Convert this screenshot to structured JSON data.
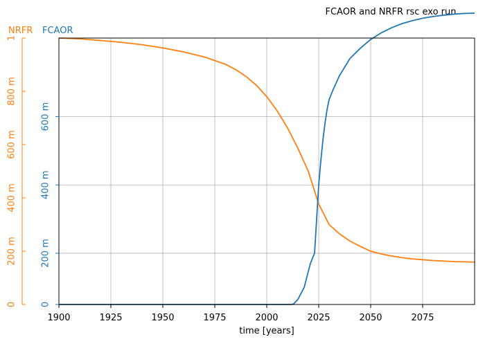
{
  "chart_data": {
    "type": "line",
    "title": "FCAOR and NRFR rsc exo run",
    "xlabel": "time [years]",
    "xlim": [
      1900,
      2100
    ],
    "x_ticks": [
      1900,
      1925,
      1950,
      1975,
      2000,
      2025,
      2050,
      2075
    ],
    "grid": true,
    "axes": {
      "nrfr": {
        "name": "NRFR",
        "color": "#ff7f0e",
        "ylim": [
          0,
          1
        ],
        "ticks": [
          {
            "v": 0,
            "label": "0"
          },
          {
            "v": 0.2,
            "label": "200 m"
          },
          {
            "v": 0.4,
            "label": "400 m"
          },
          {
            "v": 0.6,
            "label": "600 m"
          },
          {
            "v": 0.8,
            "label": "800 m"
          },
          {
            "v": 1.0,
            "label": "1"
          }
        ]
      },
      "fcaor": {
        "name": "FCAOR",
        "color": "#1f77b4",
        "ylim": [
          0.05,
          0.83
        ],
        "ticks": [
          {
            "v": 0,
            "label": "0"
          },
          {
            "v": 0.2,
            "label": "200 m"
          },
          {
            "v": 0.4,
            "label": "400 m"
          },
          {
            "v": 0.6,
            "label": "600 m"
          }
        ]
      }
    },
    "series": [
      {
        "name": "NRFR",
        "axis": "nrfr",
        "color": "#ff7f0e",
        "x": [
          1900,
          1910,
          1920,
          1930,
          1940,
          1950,
          1960,
          1970,
          1980,
          1985,
          1990,
          1995,
          2000,
          2005,
          2010,
          2015,
          2020,
          2025,
          2030,
          2035,
          2040,
          2045,
          2050,
          2055,
          2060,
          2065,
          2070,
          2075,
          2080,
          2085,
          2090,
          2095,
          2100
        ],
        "y": [
          1.0,
          0.997,
          0.991,
          0.984,
          0.975,
          0.963,
          0.948,
          0.929,
          0.902,
          0.882,
          0.856,
          0.823,
          0.78,
          0.727,
          0.663,
          0.586,
          0.5,
          0.377,
          0.3,
          0.265,
          0.238,
          0.218,
          0.2,
          0.19,
          0.182,
          0.176,
          0.171,
          0.168,
          0.165,
          0.163,
          0.161,
          0.16,
          0.159
        ]
      },
      {
        "name": "FCAOR",
        "axis": "fcaor",
        "color": "#1f77b4",
        "x": [
          1900,
          1920,
          1940,
          1960,
          1980,
          2000,
          2010,
          2012,
          2013,
          2015,
          2018,
          2021,
          2023,
          2024,
          2025,
          2026,
          2027,
          2028,
          2029,
          2030,
          2032,
          2035,
          2040,
          2045,
          2050,
          2055,
          2060,
          2065,
          2070,
          2075,
          2080,
          2085,
          2090,
          2095,
          2100
        ],
        "y": [
          0.05,
          0.05,
          0.05,
          0.05,
          0.05,
          0.05,
          0.05,
          0.05,
          0.052,
          0.065,
          0.1,
          0.17,
          0.2,
          0.3,
          0.4,
          0.47,
          0.53,
          0.58,
          0.62,
          0.65,
          0.68,
          0.72,
          0.77,
          0.8,
          0.826,
          0.845,
          0.86,
          0.872,
          0.881,
          0.888,
          0.893,
          0.897,
          0.9,
          0.902,
          0.903
        ]
      }
    ]
  }
}
